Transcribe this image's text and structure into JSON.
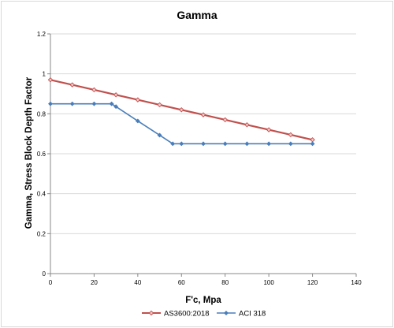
{
  "chart_data": {
    "type": "line",
    "title": "Gamma",
    "xlabel": "F'c, Mpa",
    "ylabel": "Gamma,    Stress Block Depth Factor",
    "xlim": [
      0,
      140
    ],
    "ylim": [
      0,
      1.2
    ],
    "x_ticks": [
      "0",
      "20",
      "40",
      "60",
      "80",
      "100",
      "120",
      "140"
    ],
    "y_ticks": [
      "0",
      "0.2",
      "0.4",
      "0.6",
      "0.8",
      "1",
      "1.2"
    ],
    "grid": "horizontal",
    "legend": "bottom",
    "series": [
      {
        "name": "AS3600:2018",
        "color": "#c0504d",
        "marker": "diamond-hollow",
        "x": [
          0,
          10,
          20,
          30,
          40,
          50,
          60,
          70,
          80,
          90,
          100,
          110,
          120
        ],
        "y": [
          0.97,
          0.945,
          0.92,
          0.895,
          0.87,
          0.845,
          0.82,
          0.795,
          0.77,
          0.745,
          0.72,
          0.695,
          0.67
        ]
      },
      {
        "name": "ACI 318",
        "color": "#4a7ebb",
        "marker": "diamond",
        "x": [
          0,
          10,
          20,
          28,
          30,
          40,
          50,
          56,
          60,
          70,
          80,
          90,
          100,
          110,
          120
        ],
        "y": [
          0.85,
          0.85,
          0.85,
          0.85,
          0.836,
          0.764,
          0.693,
          0.65,
          0.65,
          0.65,
          0.65,
          0.65,
          0.65,
          0.65,
          0.65
        ]
      }
    ]
  }
}
